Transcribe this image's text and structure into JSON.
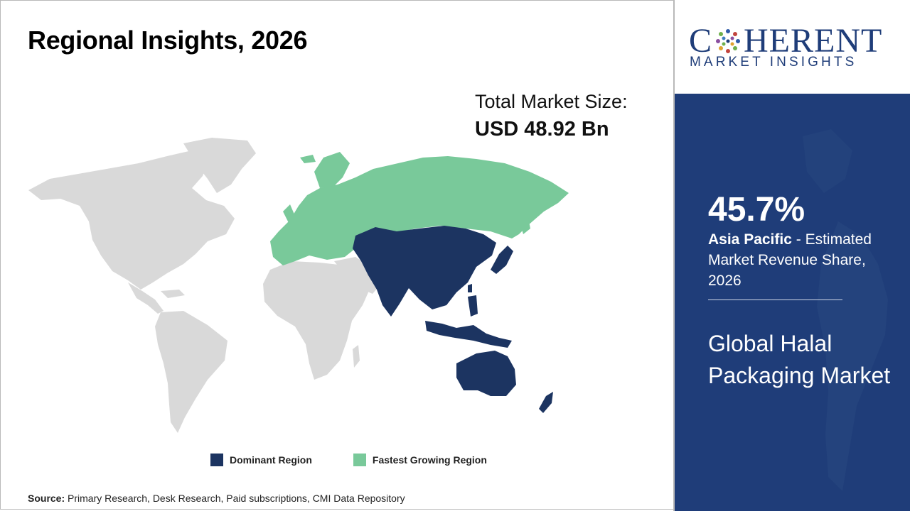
{
  "title": "Regional Insights, 2026",
  "market_size": {
    "label": "Total Market Size:",
    "value": "USD 48.92 Bn"
  },
  "legend": [
    {
      "label": "Dominant Region",
      "color": "#1c3461"
    },
    {
      "label": "Fastest Growing Region",
      "color": "#79c99a"
    }
  ],
  "source": {
    "prefix": "Source:",
    "text": "Primary Research, Desk Research, Paid subscriptions, CMI Data Repository"
  },
  "logo": {
    "word_start": "C",
    "word_end": "HERENT",
    "tagline": "MARKET INSIGHTS",
    "color": "#1f3d79"
  },
  "panel": {
    "stat": "45.7%",
    "region": "Asia Pacific",
    "description": " - Estimated Market Revenue Share, 2026",
    "market_name": "Global Halal Packaging Market",
    "background": "#1f3d79"
  },
  "map": {
    "dominant_region": "Asia Pacific",
    "fastest_growing_region": "Europe",
    "colors": {
      "land": "#d9d9d9",
      "dominant": "#1c3461",
      "fastest": "#79c99a"
    }
  }
}
